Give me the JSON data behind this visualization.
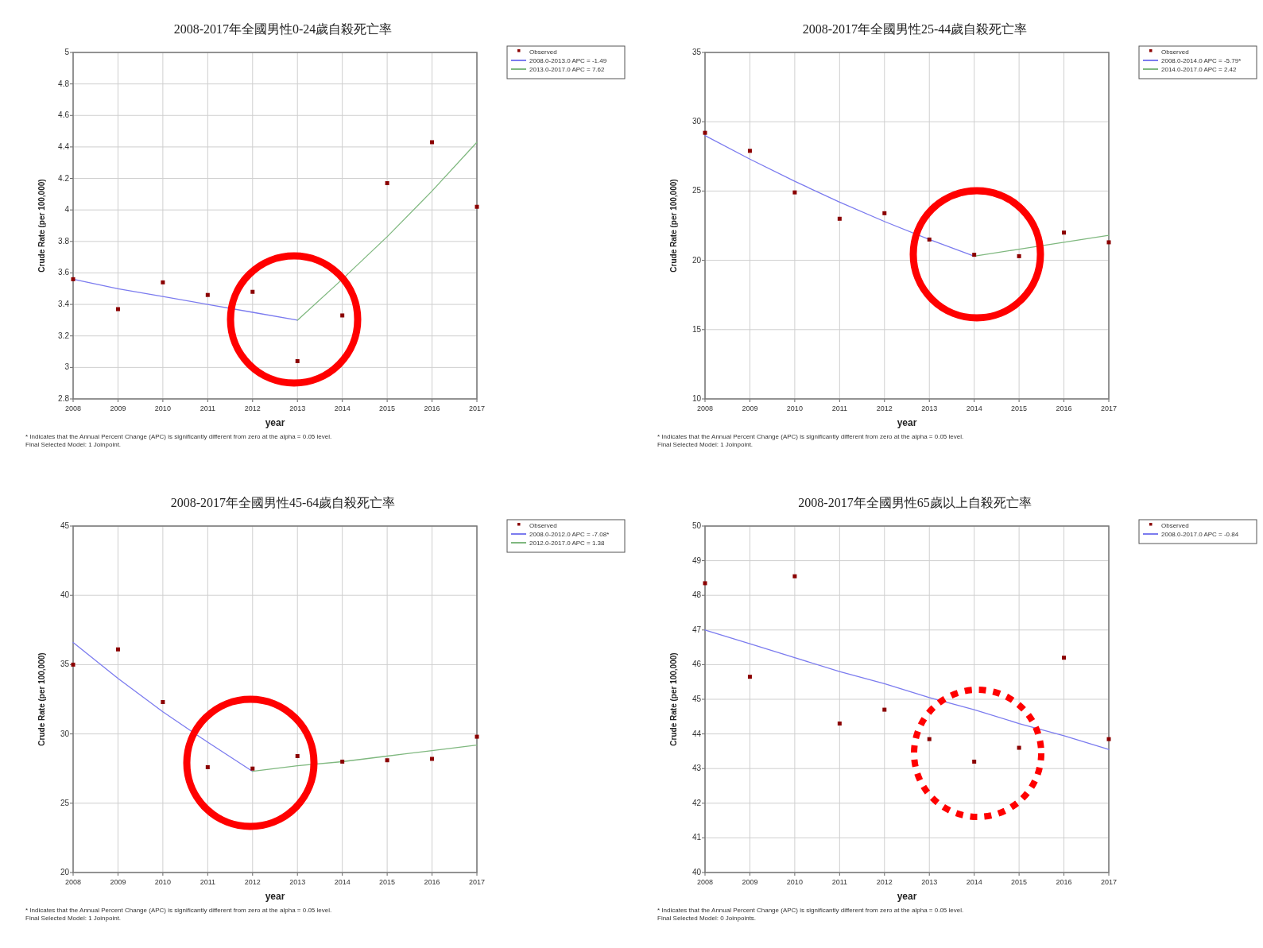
{
  "chart_data": [
    {
      "type": "line",
      "title": "2008-2017年全國男性0-24歲自殺死亡率",
      "xlabel": "year",
      "ylabel": "Crude Rate (per 100,000)",
      "xlim": [
        2008,
        2017
      ],
      "xticks": [
        2008,
        2009,
        2010,
        2011,
        2012,
        2013,
        2014,
        2015,
        2016,
        2017
      ],
      "ylim": [
        2.8,
        5
      ],
      "yticks": [
        2.8,
        3,
        3.2,
        3.4,
        3.6,
        3.8,
        4,
        4.2,
        4.4,
        4.6,
        4.8,
        5
      ],
      "grid": true,
      "legend": "right",
      "series": [
        {
          "name": "Observed",
          "type": "scatter",
          "marker": "square",
          "color": "#8b0000",
          "x": [
            2008,
            2009,
            2010,
            2011,
            2012,
            2013,
            2014,
            2015,
            2016,
            2017
          ],
          "values": [
            3.56,
            3.37,
            3.54,
            3.46,
            3.48,
            3.04,
            3.33,
            4.17,
            4.43,
            4.02
          ]
        },
        {
          "name": "2008.0-2013.0 APC = -1.49",
          "type": "line",
          "line_style": "solid",
          "color": "#7b7bef",
          "x": [
            2008,
            2009,
            2010,
            2011,
            2012,
            2013
          ],
          "values": [
            3.56,
            3.5,
            3.45,
            3.4,
            3.35,
            3.3
          ]
        },
        {
          "name": "2013.0-2017.0 APC = 7.62",
          "type": "line",
          "line_style": "solid",
          "color": "#7fb87f",
          "x": [
            2013,
            2014,
            2015,
            2016,
            2017
          ],
          "values": [
            3.3,
            3.56,
            3.83,
            4.12,
            4.43
          ]
        }
      ],
      "annotations": [
        "* Indicates that the Annual Percent Change (APC) is significantly different from zero at the alpha = 0.05 level.",
        "Final Selected Model: 1 Joinpoint."
      ]
    },
    {
      "type": "line",
      "title": "2008-2017年全國男性25-44歲自殺死亡率",
      "xlabel": "year",
      "ylabel": "Crude Rate (per 100,000)",
      "xlim": [
        2008,
        2017
      ],
      "xticks": [
        2008,
        2009,
        2010,
        2011,
        2012,
        2013,
        2014,
        2015,
        2016,
        2017
      ],
      "ylim": [
        10,
        35
      ],
      "yticks": [
        10,
        15,
        20,
        25,
        30,
        35
      ],
      "grid": true,
      "legend": "right",
      "series": [
        {
          "name": "Observed",
          "type": "scatter",
          "marker": "square",
          "color": "#8b0000",
          "x": [
            2008,
            2009,
            2010,
            2011,
            2012,
            2013,
            2014,
            2015,
            2016,
            2017
          ],
          "values": [
            29.2,
            27.9,
            24.9,
            23.0,
            23.4,
            21.5,
            20.4,
            20.3,
            22.0,
            21.3
          ]
        },
        {
          "name": "2008.0-2014.0 APC = -5.79*",
          "type": "line",
          "line_style": "solid",
          "color": "#7b7bef",
          "x": [
            2008,
            2009,
            2010,
            2011,
            2012,
            2013,
            2014
          ],
          "values": [
            29.0,
            27.3,
            25.7,
            24.2,
            22.8,
            21.5,
            20.3
          ]
        },
        {
          "name": "2014.0-2017.0 APC = 2.42",
          "type": "line",
          "line_style": "solid",
          "color": "#7fb87f",
          "x": [
            2014,
            2015,
            2016,
            2017
          ],
          "values": [
            20.3,
            20.8,
            21.3,
            21.8
          ]
        }
      ],
      "annotations": [
        "* Indicates that the Annual Percent Change (APC) is significantly different from zero at the alpha = 0.05 level.",
        "Final Selected Model: 1 Joinpoint."
      ]
    },
    {
      "type": "line",
      "title": "2008-2017年全國男性45-64歲自殺死亡率",
      "xlabel": "year",
      "ylabel": "Crude Rate (per 100,000)",
      "xlim": [
        2008,
        2017
      ],
      "xticks": [
        2008,
        2009,
        2010,
        2011,
        2012,
        2013,
        2014,
        2015,
        2016,
        2017
      ],
      "ylim": [
        20,
        45
      ],
      "yticks": [
        20,
        25,
        30,
        35,
        40,
        45
      ],
      "grid": true,
      "legend": "right",
      "series": [
        {
          "name": "Observed",
          "type": "scatter",
          "marker": "square",
          "color": "#8b0000",
          "x": [
            2008,
            2009,
            2010,
            2011,
            2012,
            2013,
            2014,
            2015,
            2016,
            2017
          ],
          "values": [
            35.0,
            36.1,
            32.3,
            27.6,
            27.5,
            28.4,
            28.0,
            28.1,
            28.2,
            29.8
          ]
        },
        {
          "name": "2008.0-2012.0 APC = -7.08*",
          "type": "line",
          "line_style": "solid",
          "color": "#7b7bef",
          "x": [
            2008,
            2009,
            2010,
            2011,
            2012
          ],
          "values": [
            36.6,
            34.0,
            31.6,
            29.4,
            27.3
          ]
        },
        {
          "name": "2012.0-2017.0 APC = 1.38",
          "type": "line",
          "line_style": "solid",
          "color": "#7fb87f",
          "x": [
            2012,
            2013,
            2014,
            2015,
            2016,
            2017
          ],
          "values": [
            27.3,
            27.7,
            28.0,
            28.4,
            28.8,
            29.2
          ]
        }
      ],
      "annotations": [
        "* Indicates that the Annual Percent Change (APC) is significantly different from zero at the alpha = 0.05 level.",
        "Final Selected Model: 1 Joinpoint."
      ]
    },
    {
      "type": "line",
      "title": "2008-2017年全國男性65歲以上自殺死亡率",
      "xlabel": "year",
      "ylabel": "Crude Rate (per 100,000)",
      "xlim": [
        2008,
        2017
      ],
      "xticks": [
        2008,
        2009,
        2010,
        2011,
        2012,
        2013,
        2014,
        2015,
        2016,
        2017
      ],
      "ylim": [
        40,
        50
      ],
      "yticks": [
        40,
        41,
        42,
        43,
        44,
        45,
        46,
        47,
        48,
        49,
        50
      ],
      "grid": true,
      "legend": "right",
      "series": [
        {
          "name": "Observed",
          "type": "scatter",
          "marker": "square",
          "color": "#8b0000",
          "x": [
            2008,
            2009,
            2010,
            2011,
            2012,
            2013,
            2014,
            2015,
            2016,
            2017
          ],
          "values": [
            48.35,
            45.65,
            48.55,
            44.3,
            44.7,
            43.85,
            43.2,
            43.6,
            46.2,
            43.85
          ]
        },
        {
          "name": "2008.0-2017.0 APC = -0.84",
          "type": "line",
          "line_style": "solid",
          "color": "#7b7bef",
          "x": [
            2008,
            2009,
            2010,
            2011,
            2012,
            2013,
            2014,
            2015,
            2016,
            2017
          ],
          "values": [
            47.0,
            46.6,
            46.2,
            45.8,
            45.45,
            45.05,
            44.7,
            44.3,
            43.95,
            43.55
          ]
        }
      ],
      "annotations": [
        "* Indicates that the Annual Percent Change (APC) is significantly different from zero at the alpha = 0.05 level.",
        "Final Selected Model: 0 Joinpoints."
      ]
    }
  ]
}
